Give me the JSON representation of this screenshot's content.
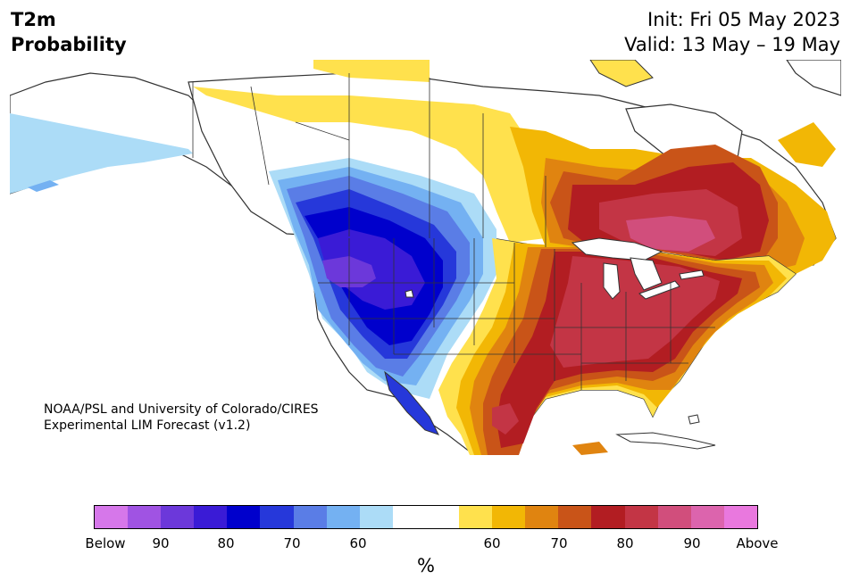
{
  "header": {
    "title_line1": "T2m",
    "title_line2": "Probability",
    "init": "Init: Fri 05 May 2023",
    "valid": "Valid: 13 May – 19 May"
  },
  "credit": {
    "line1": "NOAA/PSL and University of Colorado/CIRES",
    "line2": "Experimental LIM Forecast (v1.2)"
  },
  "colorbar": {
    "unit": "%",
    "colors": [
      "#d677ea",
      "#a053e3",
      "#6c38da",
      "#3a1bd6",
      "#0000cc",
      "#2638da",
      "#5a7de6",
      "#74b1f2",
      "#acdcf7",
      "#ffffff",
      "#ffffff",
      "#ffe14d",
      "#f2b705",
      "#e08410",
      "#c95418",
      "#b21d22",
      "#c33545",
      "#d14e7c",
      "#dc64ad",
      "#e978de"
    ],
    "ticks": [
      "Below",
      "90",
      "80",
      "70",
      "60",
      "60",
      "70",
      "80",
      "90",
      "Above"
    ]
  },
  "map": {
    "colors": {
      "ocean": "#ffffff",
      "land": "#ffffff",
      "border": "#333333",
      "below_60": "#acdcf7",
      "below_65": "#74b1f2",
      "below_70": "#5a7de6",
      "below_75": "#2638da",
      "below_80": "#0000cc",
      "below_85": "#3a1bd6",
      "below_90": "#6c38da",
      "above_60": "#ffe14d",
      "above_65": "#f2b705",
      "above_70": "#e08410",
      "above_75": "#c95418",
      "above_80": "#b21d22",
      "above_85": "#c33545",
      "above_90": "#d14e7c"
    }
  }
}
